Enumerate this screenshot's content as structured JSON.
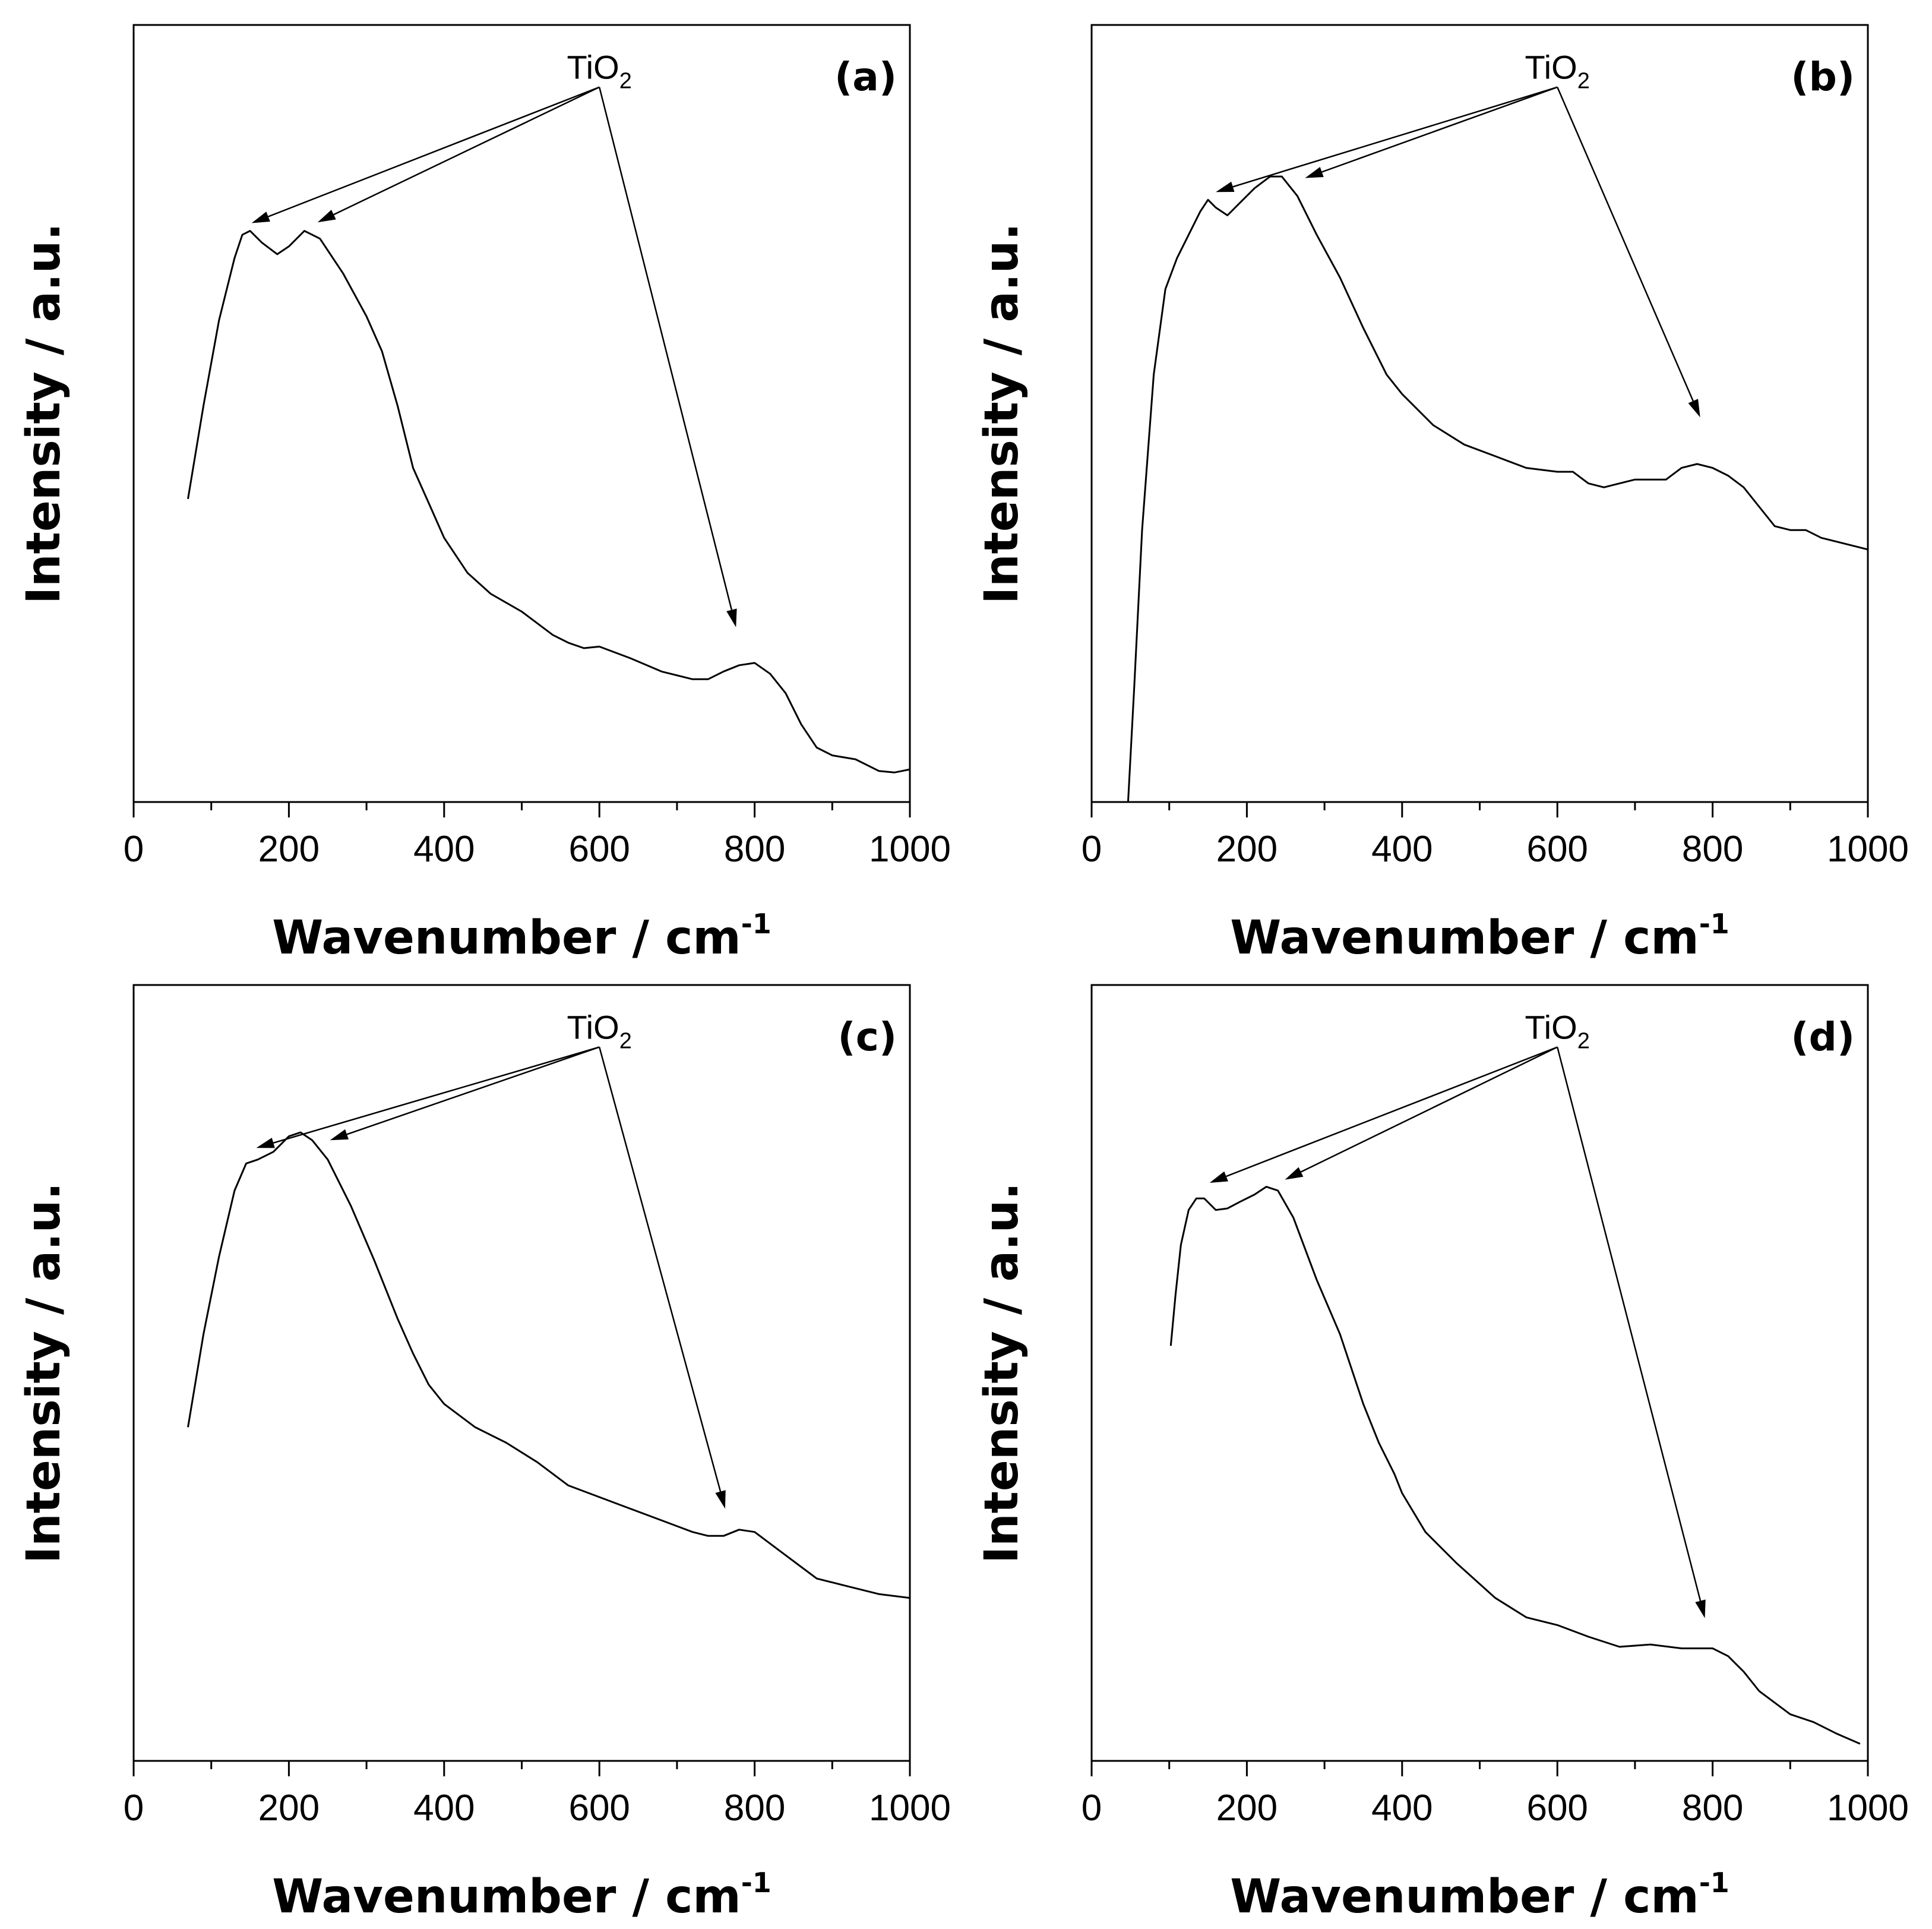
{
  "chart_data": [
    {
      "type": "line",
      "panel_label": "(a)",
      "xlabel": "Wavenumber / cm",
      "xlabel_sup": "-1",
      "ylabel": "Intensity / a.u.",
      "xlim": [
        0,
        1000
      ],
      "ylim": [
        0,
        100
      ],
      "xticks": [
        "0",
        "200",
        "400",
        "600",
        "800",
        "1000"
      ],
      "annotation": {
        "text": "TiO",
        "sub": "2",
        "x": 600,
        "y": 92,
        "arrows_to": [
          [
            152,
            74.5
          ],
          [
            237,
            74.6
          ],
          [
            776,
            22.5
          ]
        ]
      },
      "series": [
        {
          "name": "spectrum",
          "x": [
            70,
            90,
            110,
            130,
            140,
            150,
            165,
            185,
            200,
            220,
            240,
            270,
            300,
            320,
            340,
            360,
            380,
            400,
            430,
            460,
            500,
            540,
            560,
            580,
            600,
            640,
            680,
            720,
            740,
            760,
            780,
            800,
            820,
            840,
            860,
            880,
            900,
            930,
            960,
            980,
            1000
          ],
          "y": [
            39.0,
            51.0,
            62.0,
            70.0,
            73.0,
            73.5,
            72.0,
            70.5,
            71.5,
            73.5,
            72.5,
            68.0,
            62.5,
            58.0,
            51.0,
            43.0,
            38.5,
            34.0,
            29.5,
            26.8,
            24.5,
            21.5,
            20.5,
            19.8,
            20.0,
            18.5,
            16.8,
            15.8,
            15.8,
            16.8,
            17.6,
            17.9,
            16.5,
            14.0,
            10.0,
            7.0,
            6.0,
            5.5,
            4.0,
            3.8,
            4.2
          ]
        }
      ]
    },
    {
      "type": "line",
      "panel_label": "(b)",
      "xlabel": "Wavenumber / cm",
      "xlabel_sup": "-1",
      "ylabel": "Intensity / a.u.",
      "xlim": [
        0,
        1000
      ],
      "ylim": [
        0,
        100
      ],
      "xticks": [
        "0",
        "200",
        "400",
        "600",
        "800",
        "1000"
      ],
      "annotation": {
        "text": "TiO",
        "sub": "2",
        "x": 600,
        "y": 92,
        "arrows_to": [
          [
            160,
            78.5
          ],
          [
            275,
            80.3
          ],
          [
            784,
            49.5
          ]
        ]
      },
      "series": [
        {
          "name": "spectrum",
          "x": [
            47,
            55,
            65,
            80,
            95,
            110,
            125,
            140,
            150,
            160,
            175,
            190,
            210,
            230,
            245,
            265,
            290,
            320,
            350,
            380,
            400,
            440,
            480,
            520,
            560,
            600,
            620,
            640,
            660,
            680,
            700,
            740,
            760,
            780,
            800,
            820,
            840,
            860,
            880,
            900,
            920,
            940,
            960,
            1000
          ],
          "y": [
            0,
            15,
            35,
            55,
            66,
            70,
            73,
            76,
            77.5,
            76.5,
            75.5,
            77.0,
            79.0,
            80.5,
            80.5,
            78.0,
            73.0,
            67.5,
            61.0,
            55.0,
            52.5,
            48.5,
            46.0,
            44.5,
            43.0,
            42.5,
            42.5,
            41.0,
            40.5,
            41.0,
            41.5,
            41.5,
            43.0,
            43.5,
            43.0,
            42.0,
            40.5,
            38.0,
            35.5,
            35.0,
            35.0,
            34.0,
            33.5,
            32.5
          ]
        }
      ]
    },
    {
      "type": "line",
      "panel_label": "(c)",
      "xlabel": "Wavenumber / cm",
      "xlabel_sup": "-1",
      "ylabel": "Intensity / a.u.",
      "xlim": [
        0,
        1000
      ],
      "ylim": [
        0,
        100
      ],
      "xticks": [
        "0",
        "200",
        "400",
        "600",
        "800",
        "1000"
      ],
      "annotation": {
        "text": "TiO",
        "sub": "2",
        "x": 600,
        "y": 92,
        "arrows_to": [
          [
            158,
            79.0
          ],
          [
            253,
            80.0
          ],
          [
            762,
            32.5
          ]
        ]
      },
      "series": [
        {
          "name": "spectrum",
          "x": [
            70,
            90,
            110,
            130,
            145,
            160,
            180,
            200,
            215,
            230,
            250,
            280,
            310,
            340,
            360,
            380,
            400,
            440,
            480,
            520,
            560,
            600,
            640,
            680,
            720,
            740,
            760,
            780,
            800,
            820,
            840,
            860,
            880,
            900,
            920,
            940,
            960,
            1000
          ],
          "y": [
            43.0,
            55.0,
            65.0,
            73.5,
            77.0,
            77.5,
            78.5,
            80.5,
            81.0,
            80.0,
            77.5,
            71.5,
            64.5,
            57.0,
            52.5,
            48.5,
            46.0,
            43.0,
            41.0,
            38.5,
            35.5,
            34.0,
            32.5,
            31.0,
            29.5,
            29.0,
            29.0,
            29.8,
            29.5,
            28.0,
            26.5,
            25.0,
            23.5,
            23.0,
            22.5,
            22.0,
            21.5,
            21.0
          ]
        }
      ]
    },
    {
      "type": "line",
      "panel_label": "(d)",
      "xlabel": "Wavenumber / cm",
      "xlabel_sup": "-1",
      "ylabel": "Intensity / a.u.",
      "xlim": [
        0,
        1000
      ],
      "ylim": [
        0,
        100
      ],
      "xticks": [
        "0",
        "200",
        "400",
        "600",
        "800",
        "1000"
      ],
      "annotation": {
        "text": "TiO",
        "sub": "2",
        "x": 600,
        "y": 92,
        "arrows_to": [
          [
            152,
            74.5
          ],
          [
            249,
            74.9
          ],
          [
            790,
            18.4
          ]
        ]
      },
      "series": [
        {
          "name": "spectrum",
          "x": [
            102,
            108,
            115,
            125,
            135,
            145,
            160,
            175,
            190,
            210,
            225,
            240,
            260,
            290,
            320,
            350,
            370,
            390,
            400,
            430,
            470,
            520,
            560,
            600,
            640,
            680,
            720,
            760,
            800,
            820,
            840,
            860,
            880,
            900,
            930,
            960,
            990
          ],
          "y": [
            53.5,
            60.0,
            66.5,
            71.0,
            72.5,
            72.5,
            71.0,
            71.2,
            72.0,
            73.0,
            74.0,
            73.5,
            70.0,
            62.0,
            55.0,
            46.0,
            41.0,
            37.0,
            34.5,
            29.5,
            25.5,
            21.0,
            18.5,
            17.5,
            16.0,
            14.7,
            15.0,
            14.5,
            14.5,
            13.5,
            11.5,
            9.0,
            7.5,
            6.0,
            5.0,
            3.5,
            2.2
          ]
        }
      ]
    }
  ]
}
